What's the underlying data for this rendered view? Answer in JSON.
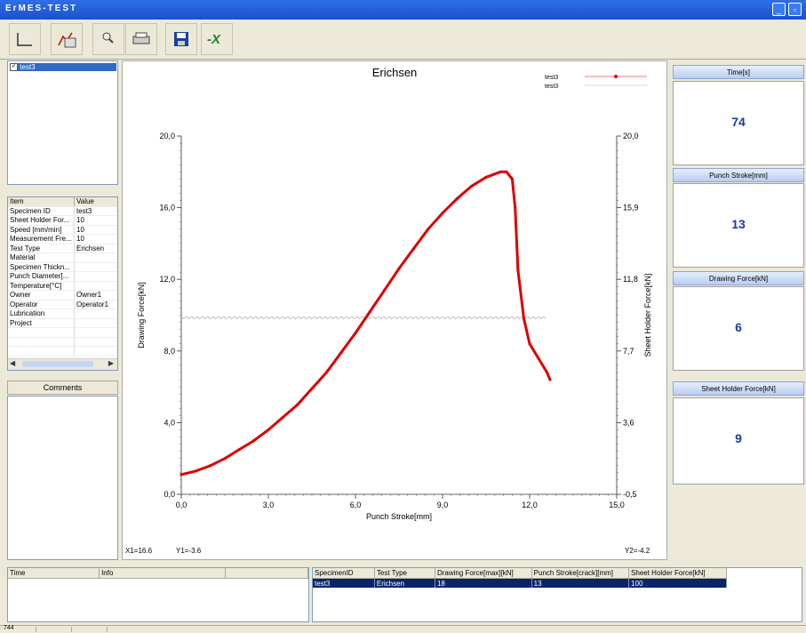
{
  "app": {
    "title": "ErMES-TEST"
  },
  "toolbar": {
    "buttons": [
      {
        "name": "axis-icon"
      },
      {
        "name": "graph-settings-icon"
      },
      {
        "name": "zoom-icon"
      },
      {
        "name": "print-icon"
      },
      {
        "name": "save-icon"
      },
      {
        "name": "export-icon"
      }
    ]
  },
  "specimen_list": {
    "items": [
      {
        "label": "test3",
        "checked": true
      }
    ]
  },
  "properties": {
    "header": {
      "item": "Item",
      "value": "Value"
    },
    "rows": [
      {
        "item": "Specimen ID",
        "value": "test3"
      },
      {
        "item": "Sheet Holder For...",
        "value": "10"
      },
      {
        "item": "Speed [mm/min]",
        "value": "10"
      },
      {
        "item": "Measurement Fre...",
        "value": "10"
      },
      {
        "item": "Test Type",
        "value": "Erichsen"
      },
      {
        "item": "Material",
        "value": ""
      },
      {
        "item": "Specimen Thickn...",
        "value": ""
      },
      {
        "item": "Punch Diameter[...",
        "value": ""
      },
      {
        "item": "Temperature[°C]",
        "value": ""
      },
      {
        "item": "Owner",
        "value": "Owner1"
      },
      {
        "item": "Operator",
        "value": "Operator1"
      },
      {
        "item": "Lubrication",
        "value": ""
      },
      {
        "item": "Project",
        "value": ""
      }
    ]
  },
  "comments": {
    "label": "Comments"
  },
  "chart_data": {
    "type": "line",
    "title": "Erichsen",
    "xlabel": "Punch Stroke[mm]",
    "ylabel": "Drawing Force[kN]",
    "y2label": "Sheet Holder Force[kN]",
    "xlim": [
      0,
      15
    ],
    "ylim": [
      0,
      20
    ],
    "y2lim": [
      -0.5,
      20
    ],
    "xticks": [
      "0,0",
      "3,0",
      "6,0",
      "9,0",
      "12,0",
      "15,0"
    ],
    "yticks": [
      "0,0",
      "4,0",
      "8,0",
      "12,0",
      "16,0",
      "20,0"
    ],
    "y2ticks": [
      "-0,5",
      "3,6",
      "7,7",
      "11,8",
      "15,9",
      "20,0"
    ],
    "legend": [
      "test3",
      "test3"
    ],
    "legend_position": "top-right",
    "series": [
      {
        "name": "test3",
        "axis": "left",
        "color": "#dd0000",
        "x": [
          0,
          0.5,
          1,
          1.5,
          2,
          2.5,
          3,
          3.5,
          4,
          4.5,
          5,
          5.5,
          6,
          6.5,
          7,
          7.5,
          8,
          8.5,
          9,
          9.5,
          10,
          10.5,
          11,
          11.2,
          11.4,
          11.5,
          11.6,
          11.8,
          12,
          12.3,
          12.6,
          12.7
        ],
        "y": [
          1.1,
          1.3,
          1.6,
          2.0,
          2.5,
          3.0,
          3.6,
          4.3,
          5.0,
          5.9,
          6.8,
          7.9,
          9.0,
          10.2,
          11.4,
          12.6,
          13.7,
          14.8,
          15.7,
          16.5,
          17.2,
          17.7,
          18.0,
          18.0,
          17.6,
          16.0,
          12.5,
          9.8,
          8.4,
          7.6,
          6.8,
          6.4
        ]
      },
      {
        "name": "test3",
        "axis": "right",
        "color": "#b0b0b0",
        "x": [
          0,
          12.6
        ],
        "y": [
          9.6,
          9.6
        ]
      }
    ],
    "cursor": {
      "x1": "X1=16.6",
      "y1": "Y1=-3.6",
      "y2": "Y2=-4.2"
    }
  },
  "stats": [
    {
      "label": "Time[s]",
      "value": "74"
    },
    {
      "label": "Punch Stroke[mm]",
      "value": "13"
    },
    {
      "label": "Drawing Force[kN]",
      "value": "6"
    },
    {
      "label": "Sheet Holder Force[kN]",
      "value": "9"
    }
  ],
  "log_table": {
    "columns": [
      "Time",
      "Info"
    ]
  },
  "results_table": {
    "columns": [
      "SpecimenID",
      "Test Type",
      "Drawing Force[max][kN]",
      "Punch Stroke[crack][mm]",
      "Sheet Holder Force[kN]"
    ],
    "rows": [
      [
        "test3",
        "Erichsen",
        "18",
        "13",
        "100"
      ]
    ]
  },
  "statusbar": {
    "first": "744"
  },
  "colors": {
    "titlebar": "#1c4fcf",
    "data_series": "#dd0000",
    "stat_value": "#1d3aa5",
    "selection": "#0a246a"
  }
}
